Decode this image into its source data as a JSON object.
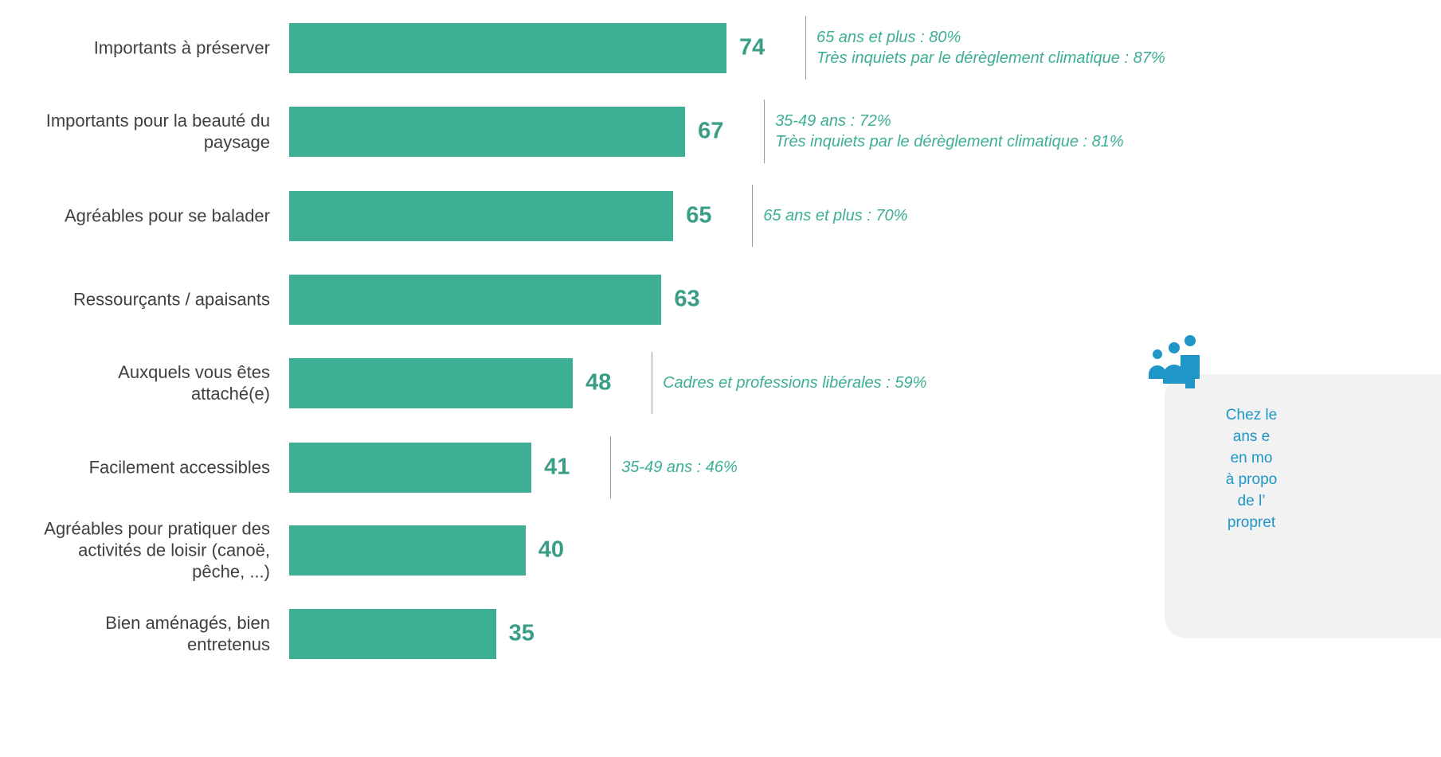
{
  "chart_data": {
    "type": "bar",
    "orientation": "horizontal",
    "categories": [
      "Importants à préserver",
      "Importants pour la beauté du\npaysage",
      "Agréables pour se balader",
      "Ressourçants / apaisants",
      "Auxquels vous êtes\nattaché(e)",
      "Facilement accessibles",
      "Agréables pour pratiquer des\nactivités de loisir (canoë,\npêche, ...)",
      "Bien aménagés, bien\nentretenus"
    ],
    "values": [
      74,
      67,
      65,
      63,
      48,
      41,
      40,
      35
    ],
    "annotations": [
      [
        "65 ans et plus : 80%",
        "Très inquiets par le dérèglement climatique : 87%"
      ],
      [
        "35-49 ans : 72%",
        "Très inquiets par le dérèglement climatique : 81%"
      ],
      [
        "65 ans et plus : 70%"
      ],
      [],
      [
        "Cadres et professions libérales : 59%"
      ],
      [
        "35-49 ans : 46%"
      ],
      [],
      []
    ],
    "xlim": [
      0,
      100
    ],
    "grid": false,
    "legend": "none",
    "bar_color": "#3daf94",
    "value_color": "#3a9e87",
    "annotation_color": "#3daf94"
  },
  "callout": {
    "icon": "people-group-icon",
    "icon_color": "#1e96c8",
    "lines": [
      "Chez le",
      "ans e",
      "en mo",
      "à propo",
      "de l’",
      "propret"
    ]
  }
}
